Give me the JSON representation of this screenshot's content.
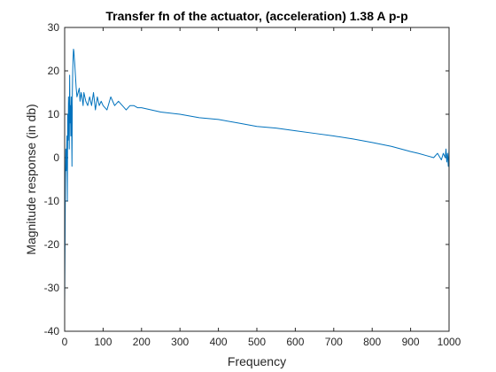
{
  "chart_data": {
    "type": "line",
    "title": "Transfer fn of the actuator, (acceleration) 1.38 A p-p",
    "xlabel": "Frequency",
    "ylabel": "Magnitude response (in db)",
    "xlim": [
      0,
      1000
    ],
    "ylim": [
      -40,
      30
    ],
    "xticks": [
      "0",
      "100",
      "200",
      "300",
      "400",
      "500",
      "600",
      "700",
      "800",
      "900",
      "1000"
    ],
    "yticks": [
      "-40",
      "-30",
      "-20",
      "-10",
      "0",
      "10",
      "20",
      "30"
    ],
    "grid": false,
    "legend": "none",
    "series": [
      {
        "color": "#0072BD",
        "x": [
          0,
          1,
          2,
          3,
          4,
          5,
          6,
          7,
          8,
          9,
          10,
          11,
          12,
          13,
          14,
          15,
          16,
          17,
          18,
          19,
          20,
          21,
          22,
          23,
          24,
          25,
          26,
          28,
          30,
          32,
          35,
          38,
          40,
          43,
          45,
          48,
          50,
          55,
          60,
          65,
          70,
          75,
          80,
          85,
          90,
          95,
          100,
          110,
          120,
          130,
          140,
          150,
          160,
          170,
          180,
          190,
          200,
          250,
          300,
          350,
          400,
          450,
          500,
          550,
          600,
          650,
          700,
          750,
          800,
          850,
          900,
          920,
          940,
          960,
          970,
          980,
          985,
          990,
          992,
          994,
          996,
          998,
          1000
        ],
        "y": [
          -34,
          -20,
          -5,
          2,
          -3,
          0,
          5,
          -10,
          10,
          4,
          14,
          9,
          2,
          19,
          8,
          12,
          5,
          14,
          9,
          -2,
          15,
          20,
          23,
          25,
          24.5,
          23,
          22,
          19,
          16,
          14,
          15,
          16,
          13,
          15,
          14,
          12,
          15,
          13,
          12,
          14,
          12,
          15,
          11,
          14,
          12,
          13,
          12,
          11,
          14,
          12,
          13,
          12,
          11,
          12,
          12,
          11.5,
          11.5,
          10.5,
          10,
          9.2,
          8.8,
          8,
          7.2,
          6.8,
          6.2,
          5.6,
          5,
          4.3,
          3.5,
          2.6,
          1.4,
          1,
          0.5,
          0,
          1,
          -0.5,
          1,
          0,
          2,
          -1,
          1,
          -2,
          2
        ]
      }
    ]
  }
}
